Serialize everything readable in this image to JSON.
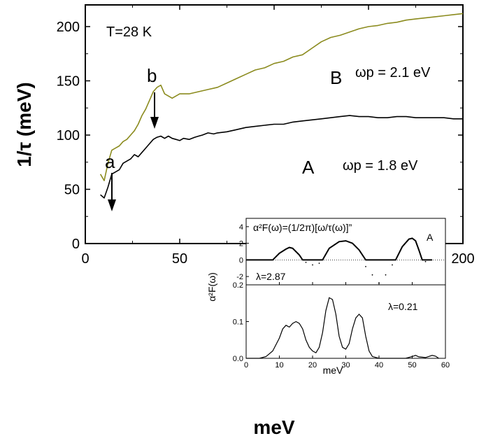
{
  "chart_data": {
    "type": "line",
    "title": "",
    "xlabel": "meV",
    "ylabel": "1/τ (meV)",
    "xlim": [
      0,
      200
    ],
    "ylim": [
      0,
      220
    ],
    "xticks": [
      0,
      50,
      100,
      150,
      200
    ],
    "yticks": [
      0,
      50,
      100,
      150,
      200
    ],
    "grid": false,
    "series": [
      {
        "name": "A",
        "color": "#000000",
        "points": [
          [
            8,
            45
          ],
          [
            10,
            42
          ],
          [
            12,
            52
          ],
          [
            14,
            64
          ],
          [
            16,
            66
          ],
          [
            18,
            68
          ],
          [
            20,
            74
          ],
          [
            22,
            76
          ],
          [
            24,
            78
          ],
          [
            26,
            82
          ],
          [
            28,
            80
          ],
          [
            30,
            84
          ],
          [
            32,
            88
          ],
          [
            34,
            92
          ],
          [
            36,
            96
          ],
          [
            38,
            98
          ],
          [
            40,
            99
          ],
          [
            42,
            97
          ],
          [
            44,
            99
          ],
          [
            46,
            97
          ],
          [
            48,
            96
          ],
          [
            50,
            95
          ],
          [
            52,
            97
          ],
          [
            55,
            96
          ],
          [
            58,
            98
          ],
          [
            60,
            99
          ],
          [
            62,
            100
          ],
          [
            65,
            102
          ],
          [
            68,
            101
          ],
          [
            70,
            102
          ],
          [
            75,
            103
          ],
          [
            80,
            105
          ],
          [
            85,
            107
          ],
          [
            90,
            108
          ],
          [
            95,
            109
          ],
          [
            100,
            110
          ],
          [
            105,
            110
          ],
          [
            110,
            112
          ],
          [
            115,
            113
          ],
          [
            120,
            114
          ],
          [
            125,
            115
          ],
          [
            130,
            116
          ],
          [
            135,
            117
          ],
          [
            140,
            118
          ],
          [
            145,
            117
          ],
          [
            150,
            117
          ],
          [
            155,
            116
          ],
          [
            160,
            116
          ],
          [
            165,
            117
          ],
          [
            170,
            117
          ],
          [
            175,
            116
          ],
          [
            180,
            116
          ],
          [
            185,
            116
          ],
          [
            190,
            116
          ],
          [
            195,
            115
          ],
          [
            200,
            115
          ]
        ]
      },
      {
        "name": "B",
        "color": "#8b8b1e",
        "points": [
          [
            8,
            64
          ],
          [
            10,
            58
          ],
          [
            12,
            74
          ],
          [
            14,
            86
          ],
          [
            16,
            88
          ],
          [
            18,
            90
          ],
          [
            20,
            94
          ],
          [
            22,
            96
          ],
          [
            24,
            100
          ],
          [
            26,
            104
          ],
          [
            28,
            110
          ],
          [
            30,
            118
          ],
          [
            32,
            124
          ],
          [
            34,
            132
          ],
          [
            36,
            140
          ],
          [
            38,
            144
          ],
          [
            40,
            146
          ],
          [
            42,
            138
          ],
          [
            44,
            136
          ],
          [
            46,
            134
          ],
          [
            48,
            136
          ],
          [
            50,
            138
          ],
          [
            55,
            138
          ],
          [
            60,
            140
          ],
          [
            65,
            142
          ],
          [
            70,
            144
          ],
          [
            75,
            148
          ],
          [
            80,
            152
          ],
          [
            85,
            156
          ],
          [
            90,
            160
          ],
          [
            95,
            162
          ],
          [
            100,
            166
          ],
          [
            105,
            168
          ],
          [
            110,
            172
          ],
          [
            115,
            174
          ],
          [
            120,
            180
          ],
          [
            125,
            186
          ],
          [
            130,
            190
          ],
          [
            135,
            192
          ],
          [
            140,
            195
          ],
          [
            145,
            198
          ],
          [
            150,
            200
          ],
          [
            155,
            201
          ],
          [
            160,
            203
          ],
          [
            165,
            204
          ],
          [
            170,
            206
          ],
          [
            175,
            207
          ],
          [
            180,
            208
          ],
          [
            185,
            209
          ],
          [
            190,
            210
          ],
          [
            195,
            211
          ],
          [
            200,
            212
          ]
        ]
      }
    ],
    "annotations": {
      "temperature": "T=28 K",
      "arrow_a": "a",
      "arrow_b": "b",
      "label_A": "A",
      "label_B": "B",
      "omega_A": "ωp = 1.8 eV",
      "omega_B": "ωp = 2.1 eV"
    },
    "inset": {
      "ylabel": "α²F(ω)",
      "xlabel": "meV",
      "xlim": [
        0,
        60
      ],
      "xticks": [
        0,
        10,
        20,
        30,
        40,
        50,
        60
      ],
      "top": {
        "formula": "α²F(ω)=(1/2π)[ω/τ(ω)]”",
        "label": "A",
        "lambda": "λ=2.87",
        "ylim": [
          -3,
          5
        ],
        "yticks": [
          -2,
          0,
          2,
          4
        ],
        "points": [
          [
            0,
            0
          ],
          [
            2,
            0
          ],
          [
            4,
            0
          ],
          [
            6,
            0
          ],
          [
            8,
            0
          ],
          [
            10,
            0.8
          ],
          [
            12,
            1.3
          ],
          [
            13,
            1.5
          ],
          [
            14,
            1.4
          ],
          [
            16,
            0.6
          ],
          [
            17,
            0
          ],
          [
            20,
            0
          ],
          [
            23,
            0
          ],
          [
            25,
            1.4
          ],
          [
            28,
            2.2
          ],
          [
            30,
            2.3
          ],
          [
            32,
            2.0
          ],
          [
            34,
            1.2
          ],
          [
            36,
            0
          ],
          [
            43,
            0
          ],
          [
            45,
            0
          ],
          [
            47,
            1.6
          ],
          [
            49,
            2.5
          ],
          [
            50,
            2.6
          ],
          [
            51,
            2.3
          ],
          [
            52,
            1.2
          ],
          [
            53,
            0
          ],
          [
            56,
            0
          ]
        ],
        "dotted": [
          [
            18,
            -0.3
          ],
          [
            20,
            -0.6
          ],
          [
            22,
            -0.4
          ],
          [
            36,
            -0.8
          ],
          [
            38,
            -1.8
          ],
          [
            40,
            -2.8
          ],
          [
            42,
            -1.8
          ],
          [
            44,
            -0.6
          ],
          [
            54,
            -0.2
          ]
        ]
      },
      "bottom": {
        "lambda": "λ=0.21",
        "ylim": [
          0,
          0.2
        ],
        "yticks": [
          0.0,
          0.1,
          0.2
        ],
        "points": [
          [
            0,
            0
          ],
          [
            4,
            0
          ],
          [
            6,
            0.005
          ],
          [
            8,
            0.02
          ],
          [
            10,
            0.055
          ],
          [
            11,
            0.08
          ],
          [
            12,
            0.09
          ],
          [
            13,
            0.085
          ],
          [
            14,
            0.095
          ],
          [
            15,
            0.1
          ],
          [
            16,
            0.095
          ],
          [
            17,
            0.08
          ],
          [
            18,
            0.05
          ],
          [
            19,
            0.03
          ],
          [
            20,
            0.02
          ],
          [
            21,
            0.015
          ],
          [
            22,
            0.03
          ],
          [
            23,
            0.07
          ],
          [
            24,
            0.13
          ],
          [
            25,
            0.165
          ],
          [
            26,
            0.16
          ],
          [
            27,
            0.12
          ],
          [
            28,
            0.06
          ],
          [
            29,
            0.03
          ],
          [
            30,
            0.025
          ],
          [
            31,
            0.04
          ],
          [
            32,
            0.08
          ],
          [
            33,
            0.11
          ],
          [
            34,
            0.12
          ],
          [
            35,
            0.11
          ],
          [
            36,
            0.06
          ],
          [
            37,
            0.02
          ],
          [
            38,
            0.005
          ],
          [
            40,
            0
          ],
          [
            48,
            0
          ],
          [
            50,
            0.005
          ],
          [
            51,
            0.008
          ],
          [
            52,
            0.004
          ],
          [
            54,
            0.002
          ],
          [
            56,
            0.008
          ],
          [
            57,
            0.006
          ],
          [
            58,
            0
          ]
        ]
      }
    }
  }
}
